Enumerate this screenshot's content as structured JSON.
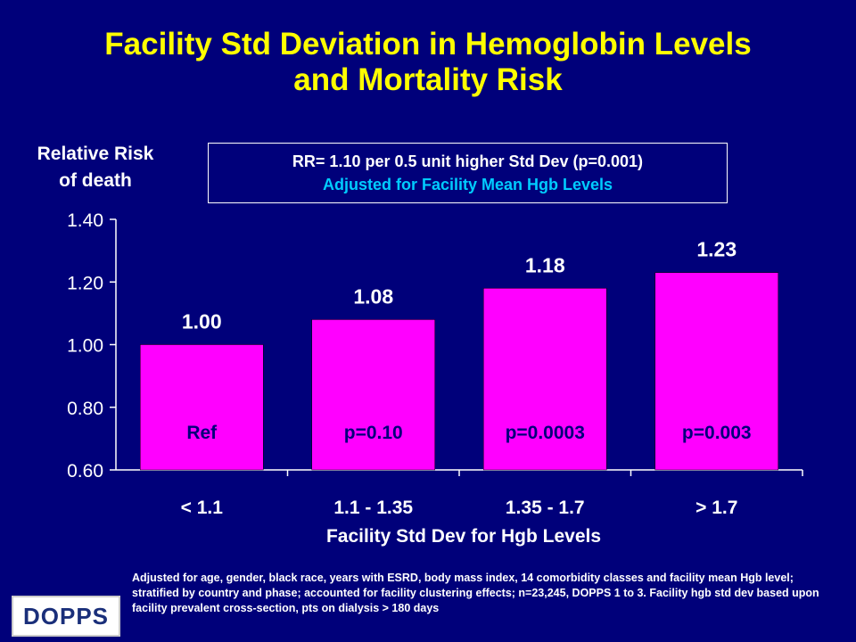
{
  "title_line1": "Facility Std Deviation in Hemoglobin Levels",
  "title_line2": "and Mortality Risk",
  "note": {
    "line1": "RR= 1.10 per 0.5 unit higher Std Dev (p=0.001)",
    "line2": "Adjusted for Facility Mean Hgb Levels"
  },
  "footnote": "Adjusted for age, gender, black race, years with ESRD, body mass index, 14 comorbidity classes and facility mean Hgb level; stratified by country and phase; accounted for facility clustering effects; n=23,245, DOPPS 1 to 3.  Facility hgb std dev based upon facility prevalent cross-section, pts on dialysis > 180 days",
  "logo_text": "DOPPS",
  "colors": {
    "background": "#00007a",
    "title": "#ffff00",
    "bar": "#ff00ff",
    "note_accent": "#00ccff"
  },
  "chart_data": {
    "type": "bar",
    "ylabel_line1": "Relative Risk",
    "ylabel_line2": "of death",
    "xlabel": "Facility Std Dev for Hgb Levels",
    "categories": [
      "< 1.1",
      "1.1 - 1.35",
      "1.35 - 1.7",
      "> 1.7"
    ],
    "values": [
      1.0,
      1.08,
      1.18,
      1.23
    ],
    "value_labels": [
      "1.00",
      "1.08",
      "1.18",
      "1.23"
    ],
    "p_labels": [
      "Ref",
      "p=0.10",
      "p=0.0003",
      "p=0.003"
    ],
    "ylim": [
      0.6,
      1.4
    ],
    "yticks": [
      "0.60",
      "0.80",
      "1.00",
      "1.20",
      "1.40"
    ],
    "grid": false,
    "legend": "none"
  }
}
